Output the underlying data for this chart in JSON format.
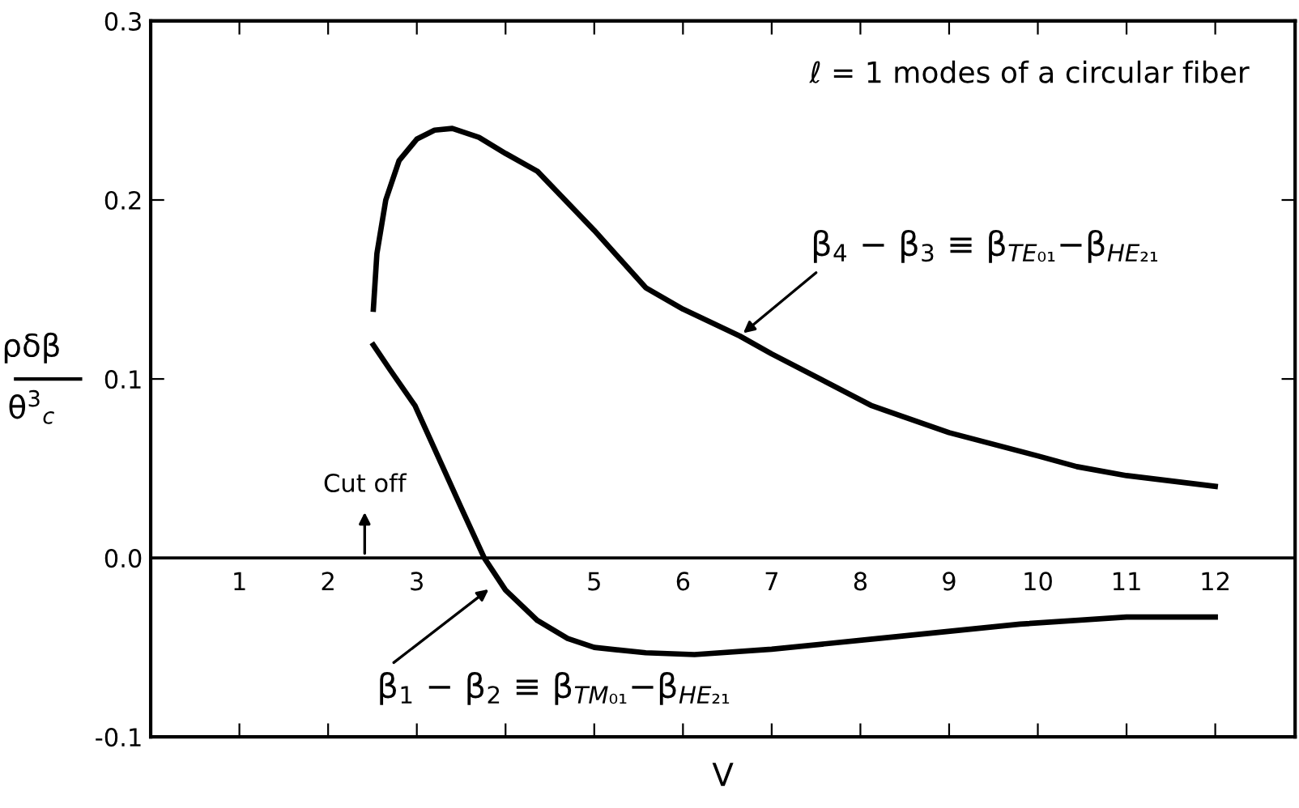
{
  "chart_data": {
    "type": "line",
    "title": "ℓ = 1 modes of a circular fiber",
    "xlabel": "V",
    "ylabel": "ρδβ\nθ$^{3}$$_{c}$",
    "series": [
      {
        "color": "#000000",
        "x": [
          2.51,
          2.55,
          2.65,
          2.8,
          3.0,
          3.2,
          3.4,
          3.7,
          4.0,
          4.36,
          5.0,
          5.58,
          6.0,
          6.64,
          7.0,
          8.13,
          9.0,
          10.0,
          10.44,
          11.0,
          12.0
        ],
        "values": [
          0.139,
          0.17,
          0.2,
          0.222,
          0.234,
          0.239,
          0.24,
          0.235,
          0.226,
          0.216,
          0.183,
          0.151,
          0.139,
          0.124,
          0.114,
          0.085,
          0.07,
          0.057,
          0.051,
          0.046,
          0.04
        ]
      },
      {
        "color": "#000000",
        "x": [
          2.51,
          2.7,
          2.98,
          3.3,
          3.5,
          3.76,
          4.0,
          4.36,
          4.7,
          5.0,
          5.58,
          6.13,
          7.0,
          8.2,
          9.8,
          11.0,
          12.0
        ],
        "values": [
          0.119,
          0.105,
          0.085,
          0.05,
          0.028,
          0.0,
          -0.018,
          -0.035,
          -0.045,
          -0.05,
          -0.053,
          -0.054,
          -0.051,
          -0.045,
          -0.037,
          -0.033,
          -0.033
        ]
      }
    ],
    "xlim": [
      0,
      12.9
    ],
    "ylim": [
      -0.1,
      0.3
    ],
    "xticks": [
      1,
      2,
      3,
      {
        "value": 4,
        "label": null
      },
      5,
      6,
      7,
      8,
      9,
      10,
      11,
      12
    ],
    "yticks": [
      {
        "value": -0.1,
        "label": "-0.1"
      },
      {
        "value": 0.0,
        "label": "0.0"
      },
      {
        "value": 0.1,
        "label": "0.1"
      },
      {
        "value": 0.2,
        "label": "0.2"
      },
      {
        "value": 0.3,
        "label": "0.3"
      }
    ],
    "annotations": [
      "Cut off",
      {
        "text": "β$_{4}$ − β$_{3}$ ≡ β$_{TE₀₁}$−β$_{HE₂₁}$",
        "x": 6.64,
        "y": 0.124
      },
      {
        "text": "β$_{1}$ − β$_{2}$ ≡ β$_{TM₀₁}$−β$_{HE₂₁}$",
        "x": 3.85,
        "y": -0.016
      }
    ],
    "grid": false,
    "legend": false,
    "marker": "none",
    "line_style": "solid"
  }
}
